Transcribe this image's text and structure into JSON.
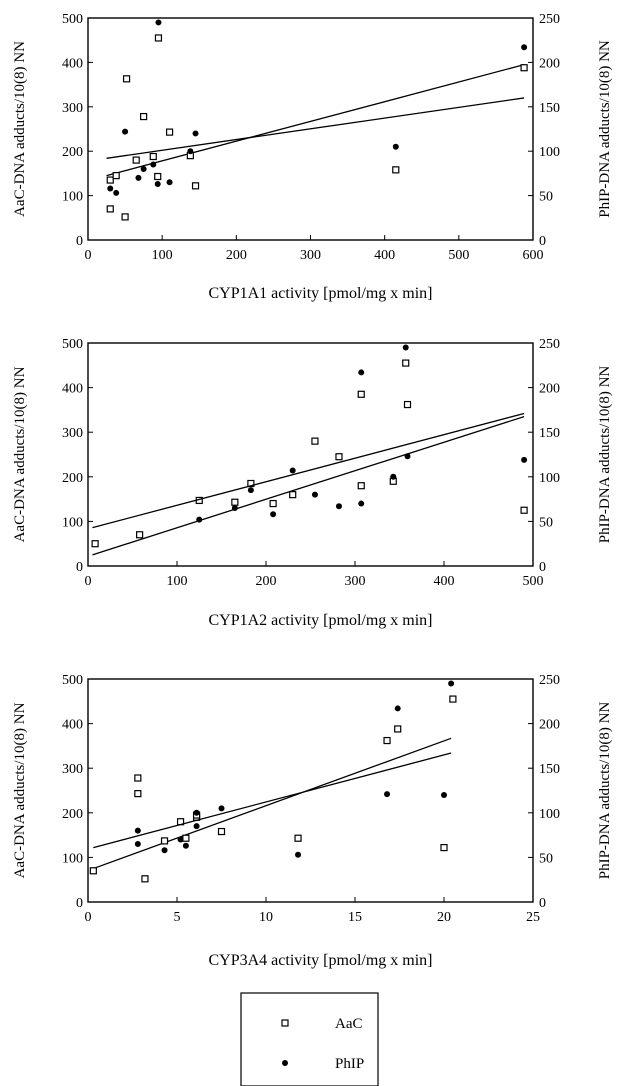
{
  "legend": {
    "items": [
      {
        "label": "AaC",
        "marker": "open-square"
      },
      {
        "label": "PhIP",
        "marker": "filled-circle"
      }
    ],
    "placement": "bottom-center"
  },
  "chart_data": [
    {
      "type": "scatter",
      "xlabel": "CYP1A1 activity [pmol/mg x min]",
      "ylabel": "AaC-DNA adducts/10(8) NN",
      "ylabel_right": "PhIP-DNA adducts/10(8) NN",
      "xlim": [
        0,
        600
      ],
      "ylim": [
        0,
        500
      ],
      "ylim_right": [
        0,
        250
      ],
      "xticks": [
        0,
        100,
        200,
        300,
        400,
        500,
        600
      ],
      "yticks": [
        0,
        100,
        200,
        300,
        400,
        500
      ],
      "yticks_right": [
        0,
        50,
        100,
        150,
        200,
        250
      ],
      "grid": false,
      "series": [
        {
          "name": "AaC",
          "axis": "left",
          "marker": "open-square",
          "x": [
            30,
            30,
            38,
            50,
            52,
            65,
            75,
            88,
            94,
            95,
            110,
            138,
            145,
            415,
            588
          ],
          "y": [
            70,
            135,
            145,
            52,
            363,
            180,
            278,
            188,
            143,
            455,
            243,
            190,
            122,
            158,
            388
          ],
          "fit": {
            "x": [
              25,
              588
            ],
            "y": [
              145,
              395
            ]
          }
        },
        {
          "name": "PhIP",
          "axis": "right",
          "marker": "filled-circle",
          "x": [
            30,
            38,
            50,
            68,
            75,
            88,
            94,
            95,
            110,
            138,
            145,
            415,
            588
          ],
          "y": [
            58,
            53,
            122,
            70,
            80,
            85,
            63,
            245,
            65,
            100,
            120,
            105,
            217
          ],
          "fit": {
            "x": [
              25,
              588
            ],
            "y": [
              92,
              160
            ]
          }
        }
      ]
    },
    {
      "type": "scatter",
      "xlabel": "CYP1A2 activity [pmol/mg x min]",
      "ylabel": "AaC-DNA adducts/10(8) NN",
      "ylabel_right": "PhIP-DNA adducts/10(8) NN",
      "xlim": [
        0,
        500
      ],
      "ylim": [
        0,
        500
      ],
      "ylim_right": [
        0,
        250
      ],
      "xticks": [
        0,
        100,
        200,
        300,
        400,
        500
      ],
      "yticks": [
        0,
        100,
        200,
        300,
        400,
        500
      ],
      "yticks_right": [
        0,
        50,
        100,
        150,
        200,
        250
      ],
      "grid": false,
      "series": [
        {
          "name": "AaC",
          "axis": "left",
          "marker": "open-square",
          "x": [
            8,
            58,
            125,
            165,
            183,
            208,
            230,
            255,
            282,
            307,
            307,
            343,
            357,
            359,
            490
          ],
          "y": [
            50,
            70,
            147,
            143,
            185,
            140,
            160,
            280,
            245,
            385,
            180,
            190,
            455,
            362,
            125
          ],
          "fit": {
            "x": [
              5,
              490
            ],
            "y": [
              25,
              335
            ]
          }
        },
        {
          "name": "PhIP",
          "axis": "right",
          "marker": "filled-circle",
          "x": [
            125,
            165,
            183,
            208,
            230,
            255,
            282,
            307,
            307,
            343,
            357,
            359,
            490
          ],
          "y": [
            52,
            65,
            85,
            58,
            107,
            80,
            67,
            70,
            217,
            100,
            245,
            123,
            119
          ],
          "fit": {
            "x": [
              5,
              490
            ],
            "y": [
              43,
              171
            ]
          }
        }
      ]
    },
    {
      "type": "scatter",
      "xlabel": "CYP3A4 activity [pmol/mg x min]",
      "ylabel": "AaC-DNA adducts/10(8) NN",
      "ylabel_right": "PhIP-DNA adducts/10(8) NN",
      "xlim": [
        0,
        25
      ],
      "ylim": [
        0,
        500
      ],
      "ylim_right": [
        0,
        250
      ],
      "xticks": [
        0,
        5,
        10,
        15,
        20,
        25
      ],
      "yticks": [
        0,
        100,
        200,
        300,
        400,
        500
      ],
      "yticks_right": [
        0,
        50,
        100,
        150,
        200,
        250
      ],
      "grid": false,
      "series": [
        {
          "name": "AaC",
          "axis": "left",
          "marker": "open-square",
          "x": [
            0.3,
            2.8,
            2.8,
            3.2,
            4.3,
            5.2,
            5.5,
            6.1,
            6.1,
            7.5,
            11.8,
            16.8,
            17.4,
            20.0,
            20.5
          ],
          "y": [
            70,
            278,
            243,
            52,
            137,
            180,
            143,
            190,
            195,
            158,
            143,
            362,
            388,
            122,
            455
          ],
          "fit": {
            "x": [
              0.3,
              20.4
            ],
            "y": [
              75,
              367
            ]
          }
        },
        {
          "name": "PhIP",
          "axis": "right",
          "marker": "filled-circle",
          "x": [
            2.8,
            2.8,
            4.3,
            5.2,
            5.5,
            6.1,
            6.1,
            7.5,
            11.8,
            16.8,
            17.4,
            20.0,
            20.4
          ],
          "y": [
            80,
            65,
            58,
            70,
            63,
            85,
            100,
            105,
            53,
            121,
            217,
            120,
            245
          ],
          "fit": {
            "x": [
              0.3,
              20.4
            ],
            "y": [
              61,
              167
            ]
          }
        }
      ]
    }
  ]
}
